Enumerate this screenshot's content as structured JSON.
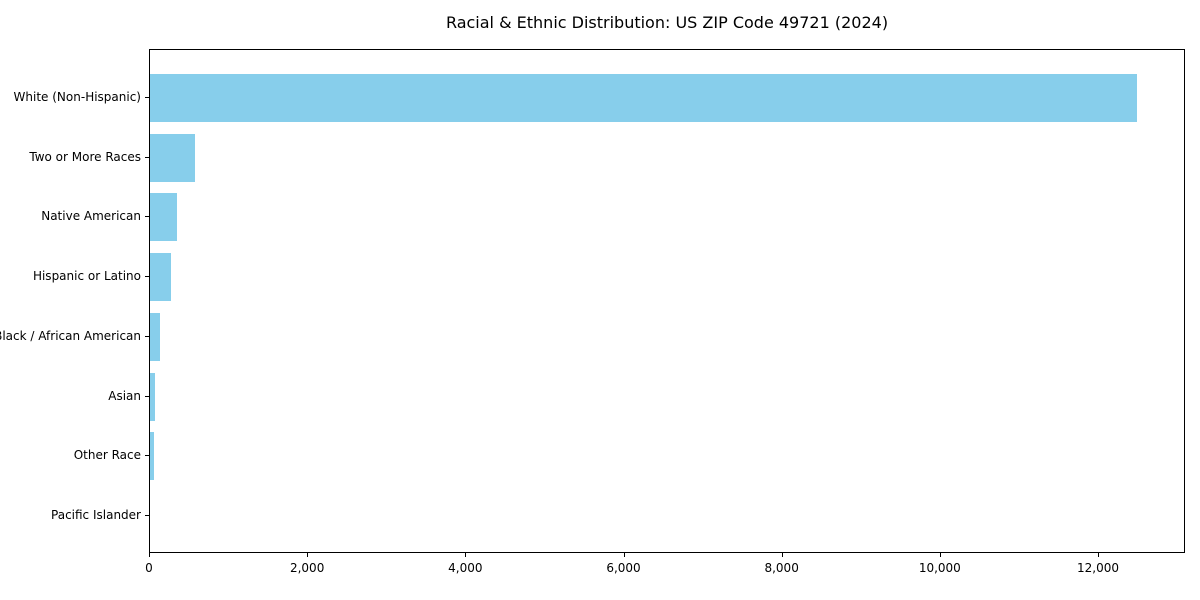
{
  "chart_data": {
    "type": "bar",
    "orientation": "horizontal",
    "title": "Racial & Ethnic Distribution: US ZIP Code 49721 (2024)",
    "categories": [
      "White (Non-Hispanic)",
      "Two or More Races",
      "Native American",
      "Hispanic or Latino",
      "Black / African American",
      "Asian",
      "Other Race",
      "Pacific Islander"
    ],
    "values": [
      12480,
      570,
      340,
      265,
      125,
      60,
      45,
      0
    ],
    "xlabel": "",
    "ylabel": "",
    "xlim": [
      0,
      13100
    ],
    "x_ticks": [
      0,
      2000,
      4000,
      6000,
      8000,
      10000,
      12000
    ],
    "x_tick_labels": [
      "0",
      "2,000",
      "4,000",
      "6,000",
      "8,000",
      "10,000",
      "12,000"
    ],
    "bar_color": "#87CEEB",
    "axis_color": "#000000",
    "background_color": "#FFFFFF",
    "grid": false,
    "legend": null
  }
}
